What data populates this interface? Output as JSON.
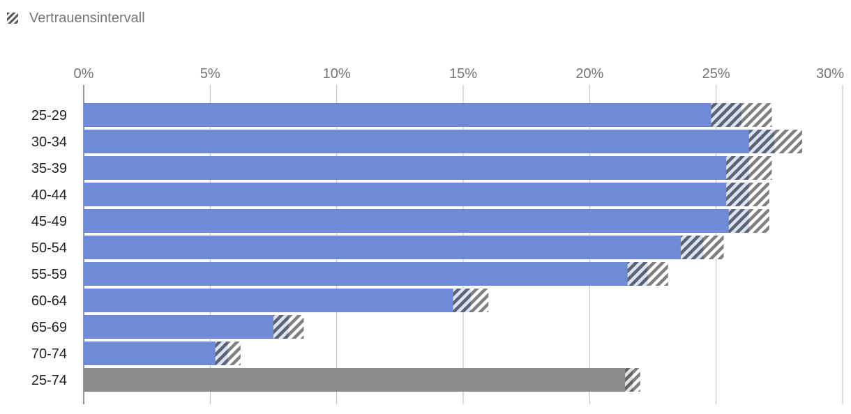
{
  "legend": {
    "label": "Vertrauensintervall",
    "icon": "hatch-swatch-icon"
  },
  "colors": {
    "bar": "#6f8bd8",
    "total_bar": "#8c8c8c",
    "hatch": "#555555",
    "grid": "#bdbdbd",
    "axis": "#757575"
  },
  "chart_data": {
    "type": "bar",
    "orientation": "horizontal",
    "categories": [
      "25-29",
      "30-34",
      "35-39",
      "40-44",
      "45-49",
      "50-54",
      "55-59",
      "60-64",
      "65-69",
      "70-74",
      "25-74"
    ],
    "values": [
      26.0,
      27.3,
      26.3,
      26.3,
      26.3,
      24.5,
      22.3,
      15.3,
      8.1,
      5.7,
      21.7
    ],
    "ci_lower": [
      24.8,
      26.3,
      25.4,
      25.4,
      25.5,
      23.6,
      21.5,
      14.6,
      7.5,
      5.2,
      21.4
    ],
    "ci_upper": [
      27.2,
      28.4,
      27.2,
      27.1,
      27.1,
      25.3,
      23.1,
      16.0,
      8.7,
      6.2,
      22.0
    ],
    "highlight_category": "25-74",
    "xlim": [
      0,
      30
    ],
    "xticks": [
      "0%",
      "5%",
      "10%",
      "15%",
      "20%",
      "25%",
      "30%"
    ],
    "xtick_values": [
      0,
      5,
      10,
      15,
      20,
      25,
      30
    ],
    "axis_position": "top",
    "grid": true,
    "legend_position": "top-left",
    "legend": [
      "Vertrauensintervall"
    ]
  }
}
